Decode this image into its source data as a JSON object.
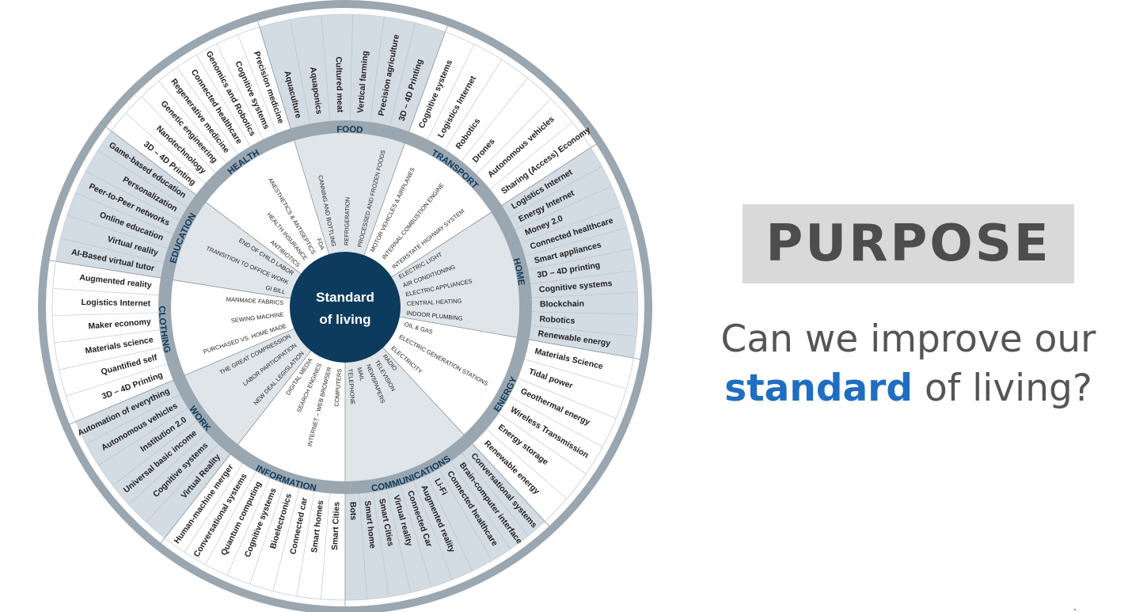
{
  "center": {
    "line1": "Standard",
    "line2": "of living"
  },
  "colors": {
    "navy": "#0d3b5e",
    "ring": "#9aa6b0",
    "shade": "#d3dbe3",
    "line": "#8a949c",
    "inner_shade": "#c7d0d9"
  },
  "sectors": [
    {
      "id": "food",
      "name": "FOOD",
      "start": 343,
      "end": 20,
      "shaded": true,
      "inner": [
        "CANNING AND BOTTLING",
        "REFRIGERATION",
        "PROCESSED AND FROZEN FOODS"
      ],
      "outer": [
        "Aquaculture",
        "Aquaponics",
        "Cultured meat",
        "Vertical farming",
        "Precision agriculture",
        "3D – 4D Printing"
      ]
    },
    {
      "id": "transport",
      "name": "TRANSPORT",
      "start": 20,
      "end": 57,
      "shaded": false,
      "inner": [
        "MOTOR VEHICLES & AIRPLANES",
        "INTERNAL COMBUSTION ENGINE",
        "INTERSTATE HIGHWAY SYSTEM"
      ],
      "outer": [
        "Cognitive systems",
        "Logistics Internet",
        "Robotics",
        "Drones",
        "Autonomous vehicles",
        "Sharing (Access) Economy"
      ]
    },
    {
      "id": "home",
      "name": "HOME",
      "start": 57,
      "end": 100,
      "shaded": true,
      "inner": [
        "ELECTRIC LIGHT",
        "AIR CONDITIONING",
        "ELECTRIC APPLIANCES",
        "CENTRAL HEATING",
        "INDOOR PLUMBING"
      ],
      "outer": [
        "Logistics Internet",
        "Energy Internet",
        "Money 2.0",
        "Connected healthcare",
        "Smart appliances",
        "3D – 4D printing",
        "Cognitive systems",
        "Blockchain",
        "Robotics",
        "Renewable energy"
      ]
    },
    {
      "id": "energy",
      "name": "ENERGY",
      "start": 100,
      "end": 137,
      "shaded": false,
      "inner": [
        "OIL & GAS",
        "ELECTRIC GENERATION STATIONS",
        "ELECTRICITY"
      ],
      "outer": [
        "Materials Science",
        "Tidal power",
        "Geothermal energy",
        "Wireless Transmission",
        "Energy storage",
        "Renewable energy"
      ]
    },
    {
      "id": "communications",
      "name": "COMMUNICATIONS",
      "start": 137,
      "end": 180,
      "shaded": true,
      "inner": [
        "RADIO",
        "TELEVISION",
        "NEWSPAPERS",
        "MAIL",
        "TELEPHONE"
      ],
      "outer": [
        "Conversational systems",
        "Brain-computer interface",
        "Connected healthcare",
        "Li-Fi",
        "Augmented reality",
        "Connected Car",
        "Virtual reality",
        "Smart Cities",
        "Smart home",
        "Bots"
      ]
    },
    {
      "id": "information",
      "name": "INFORMATION",
      "start": 180,
      "end": 218,
      "shaded": false,
      "inner": [
        "COMPUTERS",
        "INTERNET – WEB BROWSER",
        "SEARCH ENGINES",
        "DIGITAL MEDIA"
      ],
      "outer": [
        "Smart Cities",
        "Smart homes",
        "Connected car",
        "Bioelectronics",
        "Cognitive systems",
        "Quantum computing",
        "Conversational systems",
        "Human-machine merger"
      ]
    },
    {
      "id": "work",
      "name": "WORK",
      "start": 218,
      "end": 247,
      "shaded": true,
      "inner": [
        "NEW DEAL LEGISLATION",
        "LABOR PARTICIPATION",
        "THE GREAT COMPRESSION"
      ],
      "outer": [
        "Virtual Reality",
        "Cognitive systems",
        "Universal basic income",
        "Institution 2.0",
        "Autonomous vehicles",
        "Automation of everything"
      ]
    },
    {
      "id": "clothing",
      "name": "CLOTHING",
      "start": 247,
      "end": 279,
      "shaded": false,
      "inner": [
        "PURCHASED VS. HOME MADE",
        "SEWING MACHINE",
        "MANMADE FABRICS"
      ],
      "outer": [
        "3D – 4D Printing",
        "Quantified self",
        "Materials science",
        "Maker economy",
        "Logistics Internet",
        "Augmented reality"
      ]
    },
    {
      "id": "education",
      "name": "EDUCATION",
      "start": 279,
      "end": 307,
      "shaded": true,
      "inner": [
        "GI BILL",
        "TRANSITION TO OFFICE WORK",
        "END OF CHILD LABOR"
      ],
      "outer": [
        "AI-Based virtual tutor",
        "Virtual reality",
        "Online education",
        "Peer-to-Peer networks",
        "Personalization",
        "Game-based education"
      ]
    },
    {
      "id": "health",
      "name": "HEALTH",
      "start": 307,
      "end": 343,
      "shaded": false,
      "inner": [
        "ANTIBIOTICS",
        "HEALTH INSURANCE",
        "ANESTHETICS & ANTISEPTICS",
        "FDA"
      ],
      "outer": [
        "3D – 4D Printing",
        "Nanotechnology",
        "Genetic engineering",
        "Regenerative medicine",
        "Connected healthcare",
        "Genomics and Robotics",
        "Cognitive systems",
        "Precision medicine"
      ]
    }
  ],
  "purpose": {
    "title": "PURPOSE"
  },
  "question": {
    "pre": "Can we improve our",
    "highlight": "standard",
    "post": " of living?"
  }
}
